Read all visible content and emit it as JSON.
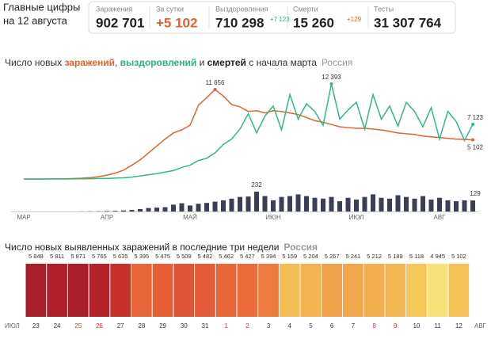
{
  "header": {
    "title": [
      "Главные цифры",
      "на 12 августа"
    ],
    "stats": [
      {
        "label": "Заражения",
        "value": "902 701"
      },
      {
        "label": "За сутки",
        "value": "+5 102"
      },
      {
        "label": "Выздоровления",
        "value": "710 298",
        "delta": "+7 123"
      },
      {
        "label": "Смерти",
        "value": "15 260",
        "delta": "+129"
      },
      {
        "label": "Тесты",
        "value": "31 307 764"
      }
    ]
  },
  "chart_data": [
    {
      "type": "line",
      "title": [
        "Число новых ",
        "заражений",
        ", ",
        "выздоровлений",
        " и ",
        "смертей",
        " с начала марта"
      ],
      "title_colors": [
        "#333333",
        "#e8612c",
        "#333333",
        "#2bb38a",
        "#333333",
        "#222222",
        "#333333"
      ],
      "region": "Россия",
      "categories": [
        "МАР",
        null,
        null,
        null,
        null,
        null,
        null,
        null,
        null,
        null,
        "АПР",
        null,
        null,
        null,
        null,
        null,
        null,
        null,
        null,
        null,
        "МАЙ",
        null,
        null,
        null,
        null,
        null,
        null,
        null,
        null,
        null,
        "ИЮН",
        null,
        null,
        null,
        null,
        null,
        null,
        null,
        null,
        null,
        "ИЮЛ",
        null,
        null,
        null,
        null,
        null,
        null,
        null,
        null,
        null,
        "АВГ",
        null,
        null,
        null,
        null
      ],
      "ylim": [
        0,
        13000
      ],
      "y2lim": [
        0,
        250
      ],
      "series": [
        {
          "name": "заражения",
          "color": "#e0652b",
          "values": [
            2,
            3,
            5,
            10,
            20,
            30,
            60,
            100,
            180,
            300,
            500,
            770,
            1150,
            1800,
            2500,
            3400,
            4300,
            5200,
            6000,
            6400,
            7000,
            9600,
            10600,
            11656,
            10800,
            9700,
            9400,
            8800,
            8900,
            8600,
            8900,
            8800,
            8600,
            8400,
            8000,
            7600,
            7400,
            7100,
            6800,
            6700,
            6600,
            6600,
            6500,
            6400,
            6200,
            6000,
            5900,
            5800,
            5600,
            5500,
            5400,
            5300,
            5200,
            5150,
            5102
          ],
          "value_labels": [
            null,
            null,
            null,
            null,
            null,
            null,
            null,
            null,
            null,
            null,
            null,
            null,
            null,
            null,
            null,
            null,
            null,
            null,
            null,
            null,
            null,
            null,
            null,
            "11 656",
            null,
            null,
            null,
            null,
            null,
            null,
            null,
            null,
            null,
            null,
            null,
            null,
            null,
            null,
            null,
            null,
            null,
            null,
            null,
            null,
            null,
            null,
            null,
            null,
            null,
            null,
            null,
            null,
            null,
            null,
            "5 102"
          ]
        },
        {
          "name": "выздоровления",
          "color": "#2fb98b",
          "values": [
            0,
            0,
            0,
            1,
            2,
            5,
            10,
            20,
            40,
            60,
            80,
            120,
            160,
            250,
            400,
            550,
            700,
            900,
            1100,
            1500,
            1800,
            2400,
            2700,
            3400,
            4500,
            5200,
            6500,
            8500,
            6000,
            8200,
            9500,
            6400,
            11000,
            7800,
            9800,
            8800,
            7000,
            12393,
            7800,
            9000,
            10000,
            6500,
            11000,
            7800,
            9500,
            6900,
            10000,
            8800,
            6800,
            9300,
            5200,
            8800,
            7500,
            5000,
            7123
          ],
          "value_labels": [
            null,
            null,
            null,
            null,
            null,
            null,
            null,
            null,
            null,
            null,
            null,
            null,
            null,
            null,
            null,
            null,
            null,
            null,
            null,
            null,
            null,
            null,
            null,
            null,
            null,
            null,
            null,
            null,
            null,
            null,
            null,
            null,
            null,
            null,
            null,
            null,
            null,
            "12 393",
            null,
            null,
            null,
            null,
            null,
            null,
            null,
            null,
            null,
            null,
            null,
            null,
            null,
            null,
            null,
            null,
            "7 123"
          ]
        },
        {
          "name": "смерти",
          "color": "#3a3f55",
          "axis": "y2",
          "values": [
            0,
            0,
            0,
            0,
            0,
            0,
            0,
            1,
            2,
            3,
            5,
            7,
            12,
            18,
            28,
            40,
            45,
            50,
            80,
            96,
            70,
            90,
            100,
            115,
            130,
            150,
            170,
            175,
            232,
            180,
            130,
            170,
            180,
            200,
            180,
            160,
            150,
            170,
            120,
            160,
            140,
            170,
            200,
            160,
            150,
            190,
            170,
            150,
            180,
            140,
            160,
            130,
            120,
            130,
            129
          ],
          "value_labels": [
            null,
            null,
            null,
            null,
            null,
            null,
            null,
            null,
            null,
            null,
            null,
            null,
            null,
            null,
            null,
            null,
            null,
            null,
            null,
            null,
            null,
            null,
            null,
            null,
            null,
            null,
            null,
            null,
            "232",
            null,
            null,
            null,
            null,
            null,
            null,
            null,
            null,
            null,
            null,
            null,
            null,
            null,
            null,
            null,
            null,
            null,
            null,
            null,
            null,
            null,
            null,
            null,
            null,
            null,
            "129"
          ]
        }
      ]
    },
    {
      "type": "heatmap",
      "title": "Число новых выявленных заражений в последние три недели",
      "region": "Россия",
      "categories": [
        "23",
        "24",
        "25",
        "26",
        "27",
        "28",
        "29",
        "30",
        "31",
        "1",
        "2",
        "3",
        "4",
        "5",
        "6",
        "7",
        "8",
        "9",
        "10",
        "11",
        "12"
      ],
      "label_colors": [
        "#333333",
        "#333333",
        "#e0322b",
        "#e0322b",
        "#333333",
        "#333333",
        "#333333",
        "#333333",
        "#333333",
        "#e0322b",
        "#e0322b",
        "#333333",
        "#333333",
        "#333333",
        "#333333",
        "#333333",
        "#e0322b",
        "#e0322b",
        "#333333",
        "#333333",
        "#333333"
      ],
      "values": [
        5848,
        5811,
        5871,
        5765,
        5635,
        5395,
        5475,
        5509,
        5482,
        5462,
        5427,
        5394,
        5159,
        5204,
        5267,
        5241,
        5212,
        5189,
        5118,
        4945,
        5102
      ],
      "value_labels": [
        "5 848",
        "5 811",
        "5 871",
        "5 765",
        "5 635",
        "5 395",
        "5 475",
        "5 509",
        "5 482",
        "5 462",
        "5 427",
        "5 394",
        "5 159",
        "5 204",
        "5 267",
        "5 241",
        "5 212",
        "5 189",
        "5 118",
        "4 945",
        "5 102"
      ],
      "colors": [
        "#a91e28",
        "#b0202a",
        "#a91e28",
        "#b52329",
        "#c8302b",
        "#e8653a",
        "#e55e35",
        "#e0553a",
        "#e45c37",
        "#e8663a",
        "#ea6c3b",
        "#ee7a3e",
        "#f5be55",
        "#f3b452",
        "#f0a048",
        "#f1a64a",
        "#f3b050",
        "#f4b752",
        "#f6c85a",
        "#f8e07a",
        "#f5c257"
      ],
      "x_edge_labels": [
        "ИЮЛ",
        "АВГ"
      ]
    }
  ]
}
